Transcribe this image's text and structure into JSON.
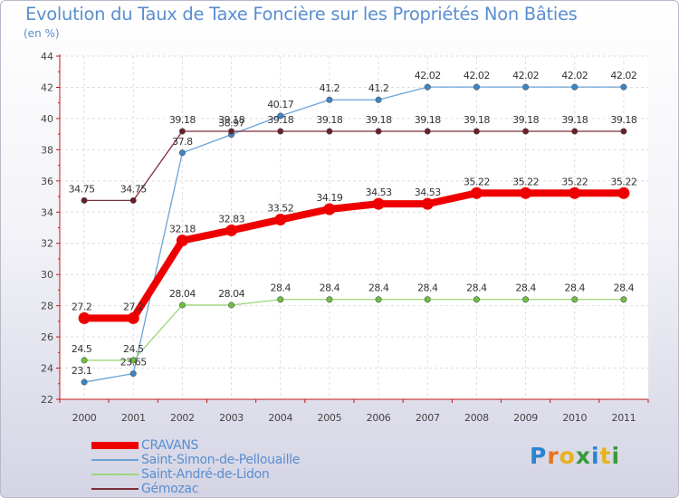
{
  "chart_data": {
    "type": "line",
    "title": "Evolution du Taux de Taxe Foncière sur les Propriétés Non Bâties",
    "ylabel": "(en %)",
    "xlabel": "",
    "categories": [
      "2000",
      "2001",
      "2002",
      "2003",
      "2004",
      "2005",
      "2006",
      "2007",
      "2008",
      "2009",
      "2010",
      "2011"
    ],
    "ylim": [
      22,
      44
    ],
    "yticks": [
      "22",
      "24",
      "26",
      "28",
      "30",
      "32",
      "34",
      "36",
      "38",
      "40",
      "42",
      "44"
    ],
    "series": [
      {
        "name": "Saint-Simon-de-Pellouaille",
        "color": "#6aa3d8",
        "marker": "#3a86c8",
        "width": 1.3,
        "r": 3.2,
        "values": [
          23.1,
          23.65,
          37.8,
          38.97,
          40.17,
          41.2,
          41.2,
          42.02,
          42.02,
          42.02,
          42.02,
          42.02
        ],
        "labels": [
          "23.1",
          "23.65",
          "37.8",
          "38.97",
          "40.17",
          "41.2",
          "41.2",
          "42.02",
          "42.02",
          "42.02",
          "42.02",
          "42.02"
        ]
      },
      {
        "name": "Gémozac",
        "color": "#7b2f3a",
        "marker": "#6a1f28",
        "width": 1.3,
        "r": 3.2,
        "values": [
          34.75,
          34.75,
          39.18,
          39.18,
          39.18,
          39.18,
          39.18,
          39.18,
          39.18,
          39.18,
          39.18,
          39.18
        ],
        "labels": [
          "34.75",
          "34.75",
          "39.18",
          "39.18",
          "39.18",
          "39.18",
          "39.18",
          "39.18",
          "39.18",
          "39.18",
          "39.18",
          "39.18"
        ]
      },
      {
        "name": "Saint-André-de-Lidon",
        "color": "#9cd67a",
        "marker": "#6ec040",
        "width": 1.3,
        "r": 3.2,
        "values": [
          24.5,
          24.5,
          28.04,
          28.04,
          28.4,
          28.4,
          28.4,
          28.4,
          28.4,
          28.4,
          28.4,
          28.4
        ],
        "labels": [
          "24.5",
          "24.5",
          "28.04",
          "28.04",
          "28.4",
          "28.4",
          "28.4",
          "28.4",
          "28.4",
          "28.4",
          "28.4",
          "28.4"
        ]
      },
      {
        "name": "CRAVANS",
        "color": "#ee0000",
        "marker": "#ee0000",
        "width": 8,
        "r": 6.5,
        "values": [
          27.2,
          27.2,
          32.18,
          32.83,
          33.52,
          34.19,
          34.53,
          34.53,
          35.22,
          35.22,
          35.22,
          35.22
        ],
        "labels": [
          "27.2",
          "27.2",
          "32.18",
          "32.83",
          "33.52",
          "34.19",
          "34.53",
          "34.53",
          "35.22",
          "35.22",
          "35.22",
          "35.22"
        ]
      }
    ],
    "legend": [
      {
        "name": "CRAVANS",
        "color": "#ee0000",
        "thick": 8
      },
      {
        "name": "Saint-Simon-de-Pellouaille",
        "color": "#6aa3d8",
        "thick": 2
      },
      {
        "name": "Saint-André-de-Lidon",
        "color": "#9cd67a",
        "thick": 2
      },
      {
        "name": "Gémozac",
        "color": "#7b2f3a",
        "thick": 2
      }
    ]
  },
  "logo": {
    "letters": [
      "P",
      "r",
      "o",
      "x",
      "i",
      "t",
      "i"
    ],
    "colors": [
      "#2b84d0",
      "#e8731c",
      "#e8b21c",
      "#3a9a3a",
      "#2b84d0",
      "#e8b21c",
      "#3a9a3a"
    ]
  }
}
